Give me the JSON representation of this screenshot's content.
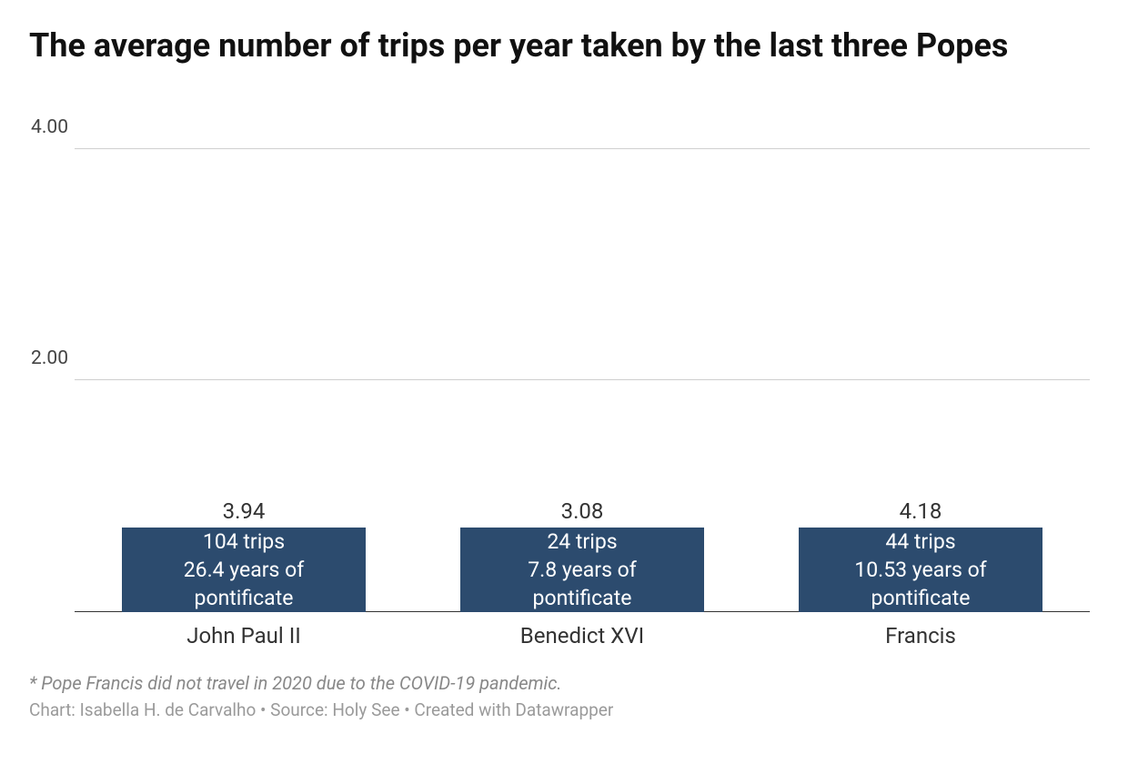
{
  "chart": {
    "type": "bar",
    "title": "The average number of trips per year taken by the last three Popes",
    "title_fontsize": 36,
    "title_fontweight": 700,
    "background_color": "#ffffff",
    "bar_color": "#2c4b6e",
    "grid_color": "#cfcfcf",
    "baseline_color": "#333333",
    "axis_label_color": "#444444",
    "value_label_color": "#333333",
    "inner_text_color": "#ffffff",
    "label_fontsize": 24,
    "value_fontsize": 24,
    "inner_fontsize": 23,
    "ytick_fontsize": 21,
    "bar_width_ratio": 0.72,
    "ylim": [
      0,
      4.4
    ],
    "yticks": [
      {
        "value": 2.0,
        "label": "2.00"
      },
      {
        "value": 4.0,
        "label": "4.00"
      }
    ],
    "categories": [
      "John Paul II",
      "Benedict XVI",
      "Francis"
    ],
    "values": [
      3.94,
      3.08,
      4.18
    ],
    "value_labels": [
      "3.94",
      "3.08",
      "4.18"
    ],
    "inner_labels": [
      {
        "line1": "104 trips",
        "line2": "26.4 years of",
        "line3": "pontificate"
      },
      {
        "line1": "24 trips",
        "line2": "7.8 years of",
        "line3": "pontificate"
      },
      {
        "line1": "44 trips",
        "line2": "10.53 years of",
        "line3": "pontificate"
      }
    ],
    "footnote": "* Pope Francis did not travel in 2020 due to the COVID-19 pandemic.",
    "credit": "Chart: Isabella H. de Carvalho • Source: Holy See • Created with Datawrapper",
    "footnote_color": "#888888",
    "credit_color": "#9a9a9a",
    "footnote_fontsize": 20,
    "credit_fontsize": 19
  }
}
